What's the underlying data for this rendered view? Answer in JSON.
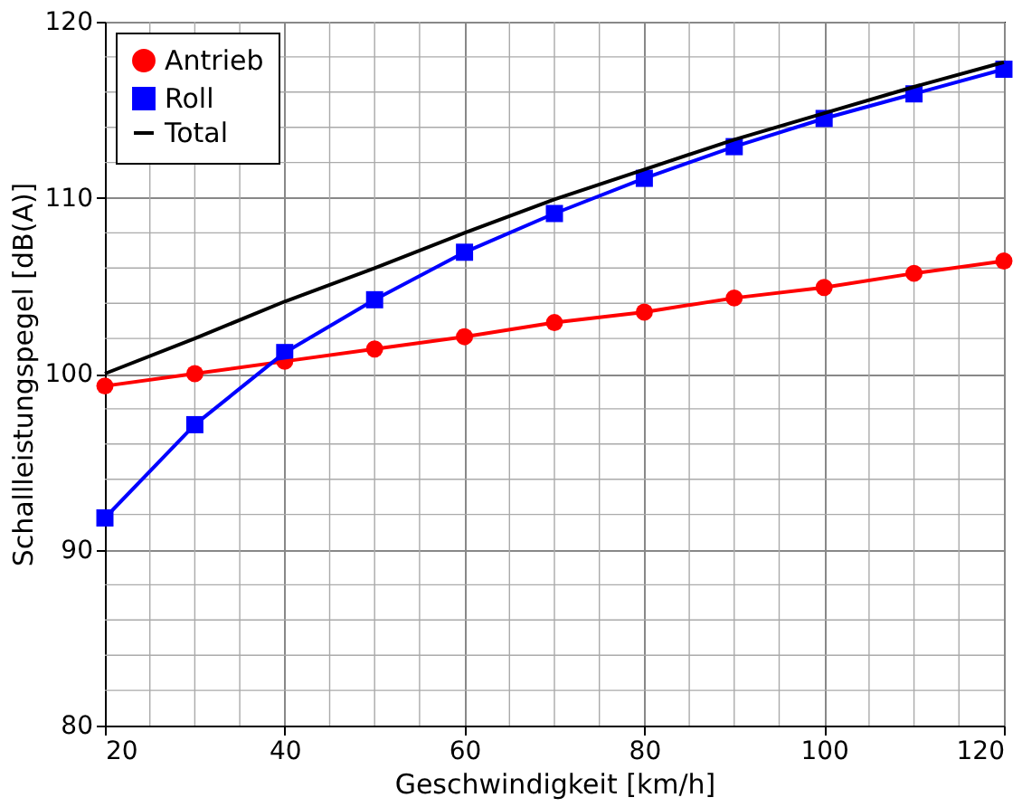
{
  "chart_data": {
    "type": "line",
    "xlabel": "Geschwindigkeit [km/h]",
    "ylabel": "Schallleistungspegel [dB(A)]",
    "x": [
      20,
      30,
      40,
      50,
      60,
      70,
      80,
      90,
      100,
      110,
      120
    ],
    "series": [
      {
        "name": "Antrieb",
        "color": "#ff0000",
        "marker": "circle",
        "values": [
          99.3,
          100.0,
          100.7,
          101.4,
          102.1,
          102.9,
          103.5,
          104.3,
          104.9,
          105.7,
          106.4
        ]
      },
      {
        "name": "Roll",
        "color": "#0000ff",
        "marker": "square",
        "values": [
          91.8,
          97.1,
          101.2,
          104.2,
          106.9,
          109.1,
          111.1,
          112.9,
          114.5,
          115.9,
          117.3
        ]
      },
      {
        "name": "Total",
        "color": "#000000",
        "marker": "none",
        "values": [
          100.0,
          102.0,
          104.1,
          106.0,
          108.0,
          109.9,
          111.6,
          113.3,
          114.8,
          116.3,
          117.7
        ]
      }
    ],
    "xlim": [
      20,
      120
    ],
    "xticks": [
      20,
      {
        "value": 25,
        "label": null
      },
      {
        "value": 30,
        "label": null
      },
      {
        "value": 35,
        "label": null
      },
      40,
      {
        "value": 45,
        "label": null
      },
      {
        "value": 50,
        "label": null
      },
      {
        "value": 55,
        "label": null
      },
      60,
      {
        "value": 65,
        "label": null
      },
      {
        "value": 70,
        "label": null
      },
      {
        "value": 75,
        "label": null
      },
      80,
      {
        "value": 85,
        "label": null
      },
      {
        "value": 90,
        "label": null
      },
      {
        "value": 95,
        "label": null
      },
      100,
      {
        "value": 105,
        "label": null
      },
      {
        "value": 110,
        "label": null
      },
      {
        "value": 115,
        "label": null
      },
      120
    ],
    "ylim": [
      80,
      120
    ],
    "yticks": [
      80,
      {
        "value": 82,
        "label": null
      },
      {
        "value": 84,
        "label": null
      },
      {
        "value": 86,
        "label": null
      },
      {
        "value": 88,
        "label": null
      },
      90,
      {
        "value": 92,
        "label": null
      },
      {
        "value": 94,
        "label": null
      },
      {
        "value": 96,
        "label": null
      },
      {
        "value": 98,
        "label": null
      },
      100,
      {
        "value": 102,
        "label": null
      },
      {
        "value": 104,
        "label": null
      },
      {
        "value": 106,
        "label": null
      },
      {
        "value": 108,
        "label": null
      },
      110,
      {
        "value": 112,
        "label": null
      },
      {
        "value": 114,
        "label": null
      },
      {
        "value": 116,
        "label": null
      },
      {
        "value": 118,
        "label": null
      },
      120
    ],
    "grid": true,
    "legend": "top left"
  }
}
